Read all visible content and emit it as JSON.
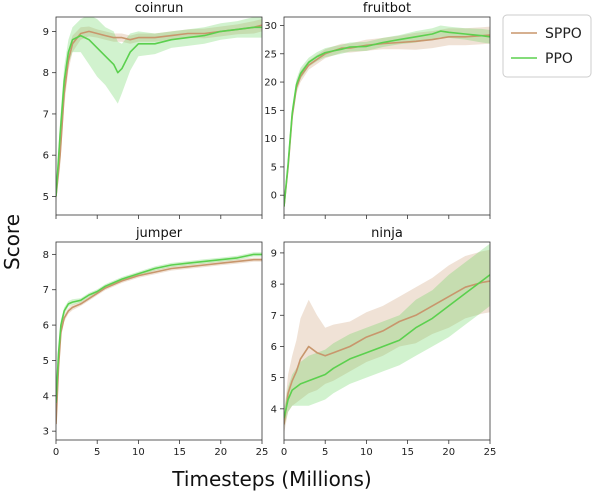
{
  "figure": {
    "ylabel": "Score",
    "xlabel": "Timesteps (Millions)"
  },
  "legend": {
    "placement": "top-right",
    "entries": [
      {
        "label": "SPPO",
        "color": "#c8966c"
      },
      {
        "label": "PPO",
        "color": "#5bd04e"
      }
    ]
  },
  "chart_data": [
    {
      "type": "line",
      "title": "coinrun",
      "xlim": [
        0,
        25
      ],
      "ylim": [
        4.55,
        9.35
      ],
      "x_ticks": [
        0,
        5,
        10,
        15,
        20,
        25
      ],
      "y_ticks": [
        5,
        6,
        7,
        8,
        9
      ],
      "x_tick_labels_shown": false,
      "series": [
        {
          "name": "SPPO",
          "x": [
            0,
            0.5,
            1,
            1.5,
            2,
            3,
            4,
            5,
            6,
            7,
            8,
            9,
            10,
            12,
            14,
            16,
            18,
            20,
            22,
            24,
            25
          ],
          "y": [
            5.0,
            6.0,
            7.5,
            8.3,
            8.7,
            8.95,
            9.0,
            8.95,
            8.9,
            8.85,
            8.85,
            8.8,
            8.85,
            8.85,
            8.9,
            8.95,
            8.95,
            9.0,
            9.05,
            9.1,
            9.15
          ],
          "band": [
            0.15,
            0.3,
            0.3,
            0.25,
            0.2,
            0.15,
            0.12,
            0.1,
            0.1,
            0.1,
            0.1,
            0.1,
            0.1,
            0.1,
            0.1,
            0.1,
            0.12,
            0.12,
            0.12,
            0.15,
            0.15
          ]
        },
        {
          "name": "PPO",
          "x": [
            0,
            0.5,
            1,
            1.5,
            2,
            3,
            4,
            5,
            6,
            7,
            7.5,
            8,
            9,
            10,
            12,
            14,
            16,
            18,
            20,
            22,
            24,
            25
          ],
          "y": [
            5.0,
            6.5,
            7.8,
            8.5,
            8.8,
            8.9,
            8.8,
            8.6,
            8.4,
            8.2,
            8.0,
            8.1,
            8.5,
            8.7,
            8.7,
            8.8,
            8.85,
            8.9,
            9.0,
            9.05,
            9.1,
            9.1
          ],
          "band": [
            0.15,
            0.35,
            0.35,
            0.3,
            0.3,
            0.4,
            0.6,
            0.7,
            0.7,
            0.8,
            0.75,
            0.6,
            0.45,
            0.3,
            0.25,
            0.2,
            0.2,
            0.2,
            0.2,
            0.2,
            0.25,
            0.25
          ]
        }
      ]
    },
    {
      "type": "line",
      "title": "fruitbot",
      "xlim": [
        0,
        25
      ],
      "ylim": [
        -3.5,
        31.5
      ],
      "x_ticks": [
        0,
        5,
        10,
        15,
        20,
        25
      ],
      "y_ticks": [
        0,
        5,
        10,
        15,
        20,
        25,
        30
      ],
      "x_tick_labels_shown": false,
      "series": [
        {
          "name": "SPPO",
          "x": [
            0,
            0.5,
            1,
            1.5,
            2,
            3,
            4,
            5,
            6,
            7,
            8,
            10,
            12,
            14,
            16,
            18,
            20,
            22,
            24,
            25
          ],
          "y": [
            -2.0,
            5.0,
            14.0,
            19.0,
            21.0,
            23.0,
            24.0,
            25.0,
            25.5,
            26.0,
            26.0,
            26.5,
            26.8,
            27.0,
            27.2,
            27.5,
            28.0,
            28.0,
            28.2,
            28.3
          ],
          "band": [
            0.5,
            1.0,
            1.2,
            1.0,
            1.0,
            0.8,
            0.8,
            0.8,
            0.8,
            0.8,
            0.8,
            1.0,
            1.0,
            1.2,
            1.5,
            1.5,
            1.5,
            1.5,
            1.5,
            1.5
          ]
        },
        {
          "name": "PPO",
          "x": [
            0,
            0.5,
            1,
            1.5,
            2,
            3,
            4,
            5,
            6,
            7,
            8,
            10,
            12,
            14,
            16,
            18,
            19,
            20,
            22,
            24,
            25
          ],
          "y": [
            -2.0,
            5.5,
            14.5,
            19.5,
            21.5,
            23.5,
            24.5,
            25.2,
            25.5,
            25.8,
            26.2,
            26.3,
            27.0,
            27.5,
            28.0,
            28.5,
            29.0,
            28.8,
            28.5,
            28.2,
            28.0
          ],
          "band": [
            0.5,
            1.0,
            1.2,
            1.0,
            1.0,
            0.8,
            0.8,
            0.8,
            0.8,
            0.8,
            0.8,
            0.8,
            0.8,
            0.8,
            1.0,
            1.0,
            1.0,
            1.0,
            1.0,
            1.2,
            1.2
          ]
        }
      ]
    },
    {
      "type": "line",
      "title": "jumper",
      "xlim": [
        0,
        25
      ],
      "ylim": [
        2.75,
        8.35
      ],
      "x_ticks": [
        0,
        5,
        10,
        15,
        20,
        25
      ],
      "y_ticks": [
        3,
        4,
        5,
        6,
        7,
        8
      ],
      "x_tick_labels_shown": true,
      "series": [
        {
          "name": "SPPO",
          "x": [
            0,
            0.3,
            0.6,
            1,
            1.5,
            2,
            3,
            4,
            5,
            6,
            8,
            10,
            12,
            14,
            16,
            18,
            20,
            22,
            24,
            25
          ],
          "y": [
            3.2,
            4.8,
            5.8,
            6.2,
            6.4,
            6.5,
            6.6,
            6.75,
            6.9,
            7.05,
            7.25,
            7.4,
            7.5,
            7.6,
            7.65,
            7.7,
            7.75,
            7.8,
            7.85,
            7.85
          ],
          "band": [
            0.1,
            0.15,
            0.15,
            0.1,
            0.08,
            0.08,
            0.06,
            0.06,
            0.06,
            0.06,
            0.06,
            0.06,
            0.06,
            0.06,
            0.06,
            0.06,
            0.06,
            0.06,
            0.06,
            0.06
          ]
        },
        {
          "name": "PPO",
          "x": [
            0,
            0.3,
            0.6,
            1,
            1.5,
            2,
            3,
            4,
            5,
            6,
            8,
            10,
            12,
            14,
            16,
            18,
            20,
            22,
            24,
            25
          ],
          "y": [
            3.8,
            5.2,
            6.0,
            6.4,
            6.6,
            6.65,
            6.7,
            6.85,
            6.95,
            7.1,
            7.3,
            7.45,
            7.6,
            7.7,
            7.75,
            7.8,
            7.85,
            7.9,
            8.0,
            8.0
          ],
          "band": [
            0.1,
            0.15,
            0.15,
            0.1,
            0.08,
            0.08,
            0.06,
            0.06,
            0.06,
            0.06,
            0.06,
            0.06,
            0.06,
            0.06,
            0.06,
            0.06,
            0.06,
            0.06,
            0.06,
            0.06
          ]
        }
      ]
    },
    {
      "type": "line",
      "title": "ninja",
      "xlim": [
        0,
        25
      ],
      "ylim": [
        3.0,
        9.35
      ],
      "x_ticks": [
        0,
        5,
        10,
        15,
        20,
        25
      ],
      "y_ticks": [
        4,
        5,
        6,
        7,
        8,
        9
      ],
      "x_tick_labels_shown": true,
      "series": [
        {
          "name": "SPPO",
          "x": [
            0,
            0.5,
            1,
            1.5,
            2,
            3,
            4,
            5,
            6,
            8,
            10,
            12,
            14,
            16,
            18,
            20,
            22,
            24,
            25
          ],
          "y": [
            3.5,
            4.5,
            4.9,
            5.2,
            5.6,
            6.0,
            5.8,
            5.7,
            5.8,
            6.0,
            6.3,
            6.5,
            6.8,
            7.0,
            7.3,
            7.6,
            7.9,
            8.05,
            8.1
          ],
          "band": [
            0.3,
            0.6,
            0.8,
            1.0,
            1.3,
            1.5,
            1.2,
            0.9,
            0.9,
            0.8,
            0.8,
            0.8,
            0.8,
            0.9,
            0.9,
            1.0,
            1.0,
            1.0,
            1.0
          ]
        },
        {
          "name": "PPO",
          "x": [
            0,
            0.5,
            1,
            1.5,
            2,
            3,
            4,
            5,
            6,
            8,
            10,
            12,
            14,
            16,
            18,
            20,
            22,
            24,
            25
          ],
          "y": [
            3.7,
            4.3,
            4.6,
            4.7,
            4.8,
            4.9,
            5.0,
            5.1,
            5.3,
            5.6,
            5.8,
            6.0,
            6.2,
            6.6,
            6.9,
            7.3,
            7.7,
            8.1,
            8.3
          ],
          "band": [
            0.3,
            0.4,
            0.5,
            0.6,
            0.7,
            0.8,
            0.8,
            0.8,
            0.8,
            0.8,
            0.8,
            0.8,
            0.8,
            0.9,
            0.9,
            1.0,
            1.0,
            1.0,
            1.0
          ]
        }
      ]
    }
  ]
}
